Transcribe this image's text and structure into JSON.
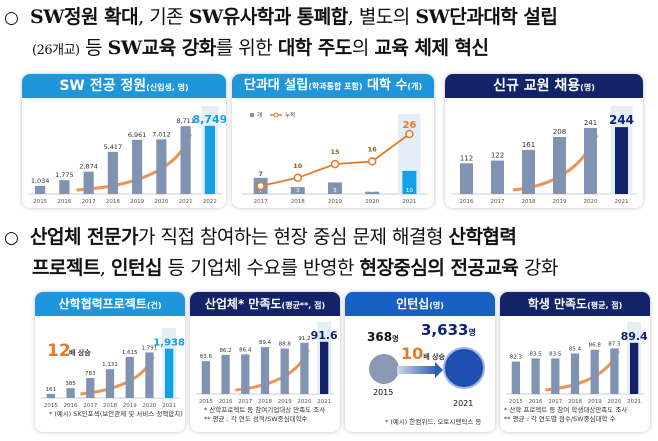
{
  "para1": {
    "bullet": "○",
    "parts": [
      {
        "t": "SW정원 확대",
        "b": true
      },
      {
        "t": ", 기존 ",
        "b": false
      },
      {
        "t": "SW유사학과 통폐합",
        "b": true
      },
      {
        "t": ", 별도의 ",
        "b": false
      },
      {
        "t": "SW단과대학 설립",
        "b": true
      }
    ],
    "line2": [
      {
        "t": "(26개교)",
        "b": false,
        "s": true
      },
      {
        "t": " 등 ",
        "b": false
      },
      {
        "t": "SW교육 강화",
        "b": true
      },
      {
        "t": "를 위한 ",
        "b": false
      },
      {
        "t": "대학 주도",
        "b": true
      },
      {
        "t": "의 ",
        "b": false
      },
      {
        "t": "교육 체제 혁신",
        "b": true
      }
    ]
  },
  "para2": {
    "bullet": "○",
    "parts": [
      {
        "t": "산업체 전문가",
        "b": true
      },
      {
        "t": "가 직접 참여하는 현장 중심 문제 해결형 ",
        "b": false
      },
      {
        "t": "산학협력",
        "b": true
      }
    ],
    "line2": [
      {
        "t": "프로젝트",
        "b": true
      },
      {
        "t": ", ",
        "b": false
      },
      {
        "t": "인턴십",
        "b": true
      },
      {
        "t": " 등 기업체 수요를 반영한 ",
        "b": false
      },
      {
        "t": "현장중심의 전공교육",
        "b": true
      },
      {
        "t": " 강화",
        "b": false
      }
    ]
  },
  "colors": {
    "bar": "#8093b2",
    "light_accent": "#12a0e8",
    "navy_accent": "#12236a",
    "orange": "#e8782a"
  },
  "chart_data": [
    {
      "type": "bar",
      "title": "SW 전공 정원",
      "subtitle": "(신입생, 명)",
      "categories": [
        "2015",
        "2016",
        "2017",
        "2018",
        "2019",
        "2020",
        "2021",
        "2022"
      ],
      "values": [
        1034,
        1775,
        2874,
        5417,
        6961,
        7012,
        8711,
        8749
      ],
      "labels": [
        "1,034",
        "1,775",
        "2,874",
        "5,417",
        "6,961",
        "7,012",
        "8,711",
        "8,749"
      ],
      "ylim": [
        0,
        9500
      ],
      "highlight": "light"
    },
    {
      "type": "bar+line",
      "title": "단과대 설립",
      "subtitle": "(학과통합 포함)",
      "title2": "대학 수",
      "subtitle2": "(개)",
      "categories": [
        "2017",
        "2018",
        "2019",
        "2020",
        "2021"
      ],
      "series": [
        {
          "name": "개",
          "type": "bar",
          "values": [
            7,
            3,
            5,
            1,
            10
          ]
        },
        {
          "name": "누적",
          "type": "line",
          "values": [
            7,
            10,
            15,
            16,
            26
          ]
        }
      ],
      "ylim": [
        0,
        28
      ],
      "legend": "top-left",
      "highlight": "light"
    },
    {
      "type": "bar",
      "title": "신규 교원 채용",
      "subtitle": "(명)",
      "categories": [
        "2016",
        "2017",
        "2018",
        "2019",
        "2020",
        "2021"
      ],
      "values": [
        112,
        122,
        161,
        208,
        241,
        244
      ],
      "labels": [
        "112",
        "122",
        "161",
        "208",
        "241",
        "244"
      ],
      "ylim": [
        0,
        270
      ],
      "highlight": "navy"
    },
    {
      "type": "bar",
      "title": "산학협력프로젝트",
      "subtitle": "(건)",
      "categories": [
        "2015",
        "2016",
        "2017",
        "2018",
        "2019",
        "2020",
        "2021"
      ],
      "values": [
        161,
        385,
        783,
        1131,
        1615,
        1791,
        1938
      ],
      "labels": [
        "161",
        "385",
        "783",
        "1,131",
        "1,615",
        "1,791",
        "1,938"
      ],
      "ylim": [
        0,
        2200
      ],
      "highlight": "light",
      "callout": {
        "num": "12",
        "text": "배 상승"
      },
      "notes": [
        "* (예시) SK인포섹(보안관제 및 서비스 정책합치) 등"
      ]
    },
    {
      "type": "bar",
      "title": "산업체* 만족도",
      "subtitle": "(평균**, 점)",
      "categories": [
        "2015",
        "2016",
        "2017",
        "2018",
        "2019",
        "2020",
        "2021"
      ],
      "values": [
        83.6,
        86.2,
        86.4,
        89.4,
        88.8,
        91.2,
        91.6
      ],
      "labels": [
        "83.6",
        "86.2",
        "86.4",
        "89.4",
        "88.8",
        "91.2",
        "91.6"
      ],
      "ylim": [
        70,
        94
      ],
      "highlight": "navy",
      "notes": [
        "* 산학프로젝트 등 참여기업대상 만족도 조사",
        "** 평균 : 각 연도 성적/SW중심대학수"
      ]
    },
    {
      "type": "bar",
      "title": "학생 만족도",
      "subtitle": "(평균, 점)",
      "categories": [
        "2015",
        "2016",
        "2017",
        "2018",
        "2019",
        "2020",
        "2021"
      ],
      "values": [
        82.3,
        83.5,
        83.5,
        85.4,
        86.8,
        87.3,
        89.4
      ],
      "labels": [
        "82.3",
        "83.5",
        "83.5",
        "85.4",
        "86.8",
        "87.3",
        "89.4"
      ],
      "ylim": [
        70,
        92
      ],
      "highlight": "navy",
      "notes": [
        "* 산학 프로젝트 등 참여 학생대상만족도 조사",
        "** 평균 : 각 연도별 점수/SW중심대학 수"
      ]
    }
  ],
  "internship": {
    "title": "인턴십",
    "subtitle": "(명)",
    "from": {
      "value": "368",
      "unit": "명",
      "year": "2015"
    },
    "to": {
      "value": "3,633",
      "unit": "명",
      "year": "2021"
    },
    "callout": {
      "num": "10",
      "text": "배 상승"
    },
    "notes": [
      "* (예시) 한컴위드, 오토시맨틱스 등"
    ]
  }
}
